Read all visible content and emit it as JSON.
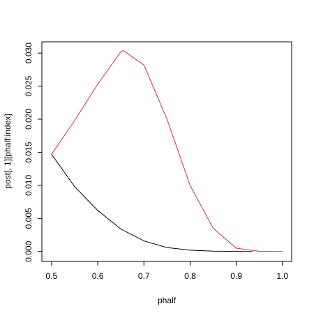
{
  "chart_data": {
    "type": "line",
    "xlabel": "phalf",
    "ylabel": "post[, 1][phalf:index]",
    "series": [
      {
        "color": "#000000",
        "x": [
          0.5,
          0.55,
          0.6,
          0.65,
          0.7,
          0.75,
          0.8,
          0.85,
          0.9,
          0.935
        ],
        "values": [
          0.0147,
          0.0098,
          0.0062,
          0.0034,
          0.0016,
          0.0006,
          0.0002,
          5e-05,
          1e-05,
          0
        ]
      },
      {
        "color": "#cc3333",
        "x": [
          0.5,
          0.55,
          0.6,
          0.65,
          0.655,
          0.7,
          0.75,
          0.8,
          0.85,
          0.9,
          0.95,
          1
        ],
        "values": [
          0.0147,
          0.0198,
          0.0253,
          0.0302,
          0.0304,
          0.0282,
          0.02,
          0.01,
          0.0035,
          0.0005,
          3e-05,
          0
        ]
      }
    ],
    "xlim": [
      0.479,
      1.02
    ],
    "ylim": [
      -0.0015,
      0.0317
    ],
    "xticks": [
      0.5,
      0.6,
      0.7,
      0.8,
      0.9,
      {
        "value": 1,
        "label": "1.0"
      }
    ],
    "yticks": [
      {
        "value": 0,
        "label": "0.000"
      },
      {
        "value": 0.005,
        "label": "0.005"
      },
      {
        "value": 0.01,
        "label": "0.010"
      },
      {
        "value": 0.015,
        "label": "0.015"
      },
      {
        "value": 0.02,
        "label": "0.020"
      },
      {
        "value": 0.025,
        "label": "0.025"
      },
      {
        "value": 0.03,
        "label": "0.030"
      }
    ]
  }
}
